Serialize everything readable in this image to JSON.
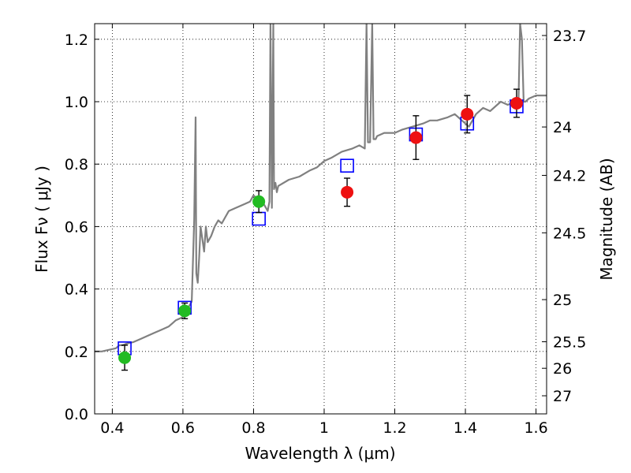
{
  "chart_data": {
    "type": "scatter",
    "title": "",
    "xlabel": "Wavelength  λ (μm)",
    "ylabel": "Flux  Fν  ( μJy )",
    "ylabel_right": "Magnitude (AB)",
    "xlim": [
      0.35,
      1.63
    ],
    "ylim": [
      0.0,
      1.25
    ],
    "grid": true,
    "x_ticks": [
      0.4,
      0.6,
      0.8,
      1.0,
      1.2,
      1.4,
      1.6
    ],
    "x_tick_labels": [
      "0.4",
      "0.6",
      "0.8",
      "1",
      "1.2",
      "1.4",
      "1.6"
    ],
    "y_ticks": [
      0.0,
      0.2,
      0.4,
      0.6,
      0.8,
      1.0,
      1.2
    ],
    "y_tick_labels": [
      "0.0",
      "0.2",
      "0.4",
      "0.6",
      "0.8",
      "1.0",
      "1.2"
    ],
    "right_ticks": [
      {
        "label": "23.7",
        "flux": 1.212
      },
      {
        "label": "24",
        "flux": 0.919
      },
      {
        "label": "24.2",
        "flux": 0.764
      },
      {
        "label": "24.5",
        "flux": 0.58
      },
      {
        "label": "25",
        "flux": 0.366
      },
      {
        "label": "25.5",
        "flux": 0.231
      },
      {
        "label": "26",
        "flux": 0.146
      },
      {
        "label": "27",
        "flux": 0.058
      }
    ],
    "colors": {
      "spectrum": "#808080",
      "green_points": "#22bb22",
      "red_points": "#ee1111",
      "model_boxes": "#0000ff",
      "errorbars": "#000000"
    },
    "series": [
      {
        "name": "spectrum",
        "kind": "line",
        "x": [
          0.35,
          0.37,
          0.39,
          0.41,
          0.42,
          0.43,
          0.44,
          0.46,
          0.48,
          0.5,
          0.52,
          0.54,
          0.56,
          0.57,
          0.58,
          0.6,
          0.61,
          0.625,
          0.632,
          0.636,
          0.638,
          0.642,
          0.646,
          0.65,
          0.66,
          0.665,
          0.67,
          0.68,
          0.69,
          0.7,
          0.71,
          0.72,
          0.73,
          0.75,
          0.77,
          0.79,
          0.8,
          0.81,
          0.82,
          0.83,
          0.84,
          0.845,
          0.848,
          0.852,
          0.856,
          0.858,
          0.862,
          0.866,
          0.87,
          0.9,
          0.93,
          0.96,
          0.98,
          1.0,
          1.02,
          1.05,
          1.08,
          1.1,
          1.115,
          1.12,
          1.124,
          1.13,
          1.136,
          1.14,
          1.146,
          1.15,
          1.17,
          1.2,
          1.22,
          1.25,
          1.28,
          1.3,
          1.32,
          1.35,
          1.37,
          1.39,
          1.41,
          1.43,
          1.45,
          1.47,
          1.49,
          1.5,
          1.52,
          1.54,
          1.55,
          1.555,
          1.56,
          1.565,
          1.57,
          1.58,
          1.6,
          1.63
        ],
        "y": [
          0.2,
          0.2,
          0.205,
          0.21,
          0.22,
          0.22,
          0.225,
          0.23,
          0.24,
          0.25,
          0.26,
          0.27,
          0.28,
          0.29,
          0.3,
          0.31,
          0.33,
          0.36,
          0.62,
          0.95,
          0.45,
          0.42,
          0.5,
          0.6,
          0.52,
          0.6,
          0.55,
          0.57,
          0.6,
          0.62,
          0.61,
          0.63,
          0.65,
          0.66,
          0.67,
          0.68,
          0.7,
          0.69,
          0.68,
          0.67,
          0.65,
          0.68,
          1.25,
          0.66,
          1.25,
          0.72,
          0.74,
          0.71,
          0.73,
          0.75,
          0.76,
          0.78,
          0.79,
          0.81,
          0.82,
          0.84,
          0.85,
          0.86,
          0.85,
          1.25,
          0.87,
          0.87,
          1.25,
          0.88,
          0.88,
          0.89,
          0.9,
          0.9,
          0.91,
          0.92,
          0.93,
          0.94,
          0.94,
          0.95,
          0.96,
          0.94,
          0.92,
          0.96,
          0.98,
          0.97,
          0.99,
          1.0,
          0.99,
          1.0,
          0.98,
          1.25,
          1.2,
          1.0,
          1.0,
          1.01,
          1.02,
          1.02
        ]
      },
      {
        "name": "green photometry",
        "kind": "points",
        "x": [
          0.435,
          0.605,
          0.815
        ],
        "y": [
          0.18,
          0.33,
          0.68
        ],
        "err": [
          0.04,
          0.025,
          0.035
        ]
      },
      {
        "name": "red photometry",
        "kind": "points",
        "x": [
          1.065,
          1.26,
          1.405,
          1.545
        ],
        "y": [
          0.71,
          0.885,
          0.96,
          0.995
        ],
        "err": [
          0.045,
          0.07,
          0.06,
          0.045
        ]
      },
      {
        "name": "model fluxes",
        "kind": "boxes",
        "x": [
          0.435,
          0.605,
          0.815,
          1.065,
          1.26,
          1.405,
          1.545
        ],
        "y": [
          0.21,
          0.34,
          0.625,
          0.795,
          0.895,
          0.93,
          0.985
        ]
      }
    ]
  }
}
